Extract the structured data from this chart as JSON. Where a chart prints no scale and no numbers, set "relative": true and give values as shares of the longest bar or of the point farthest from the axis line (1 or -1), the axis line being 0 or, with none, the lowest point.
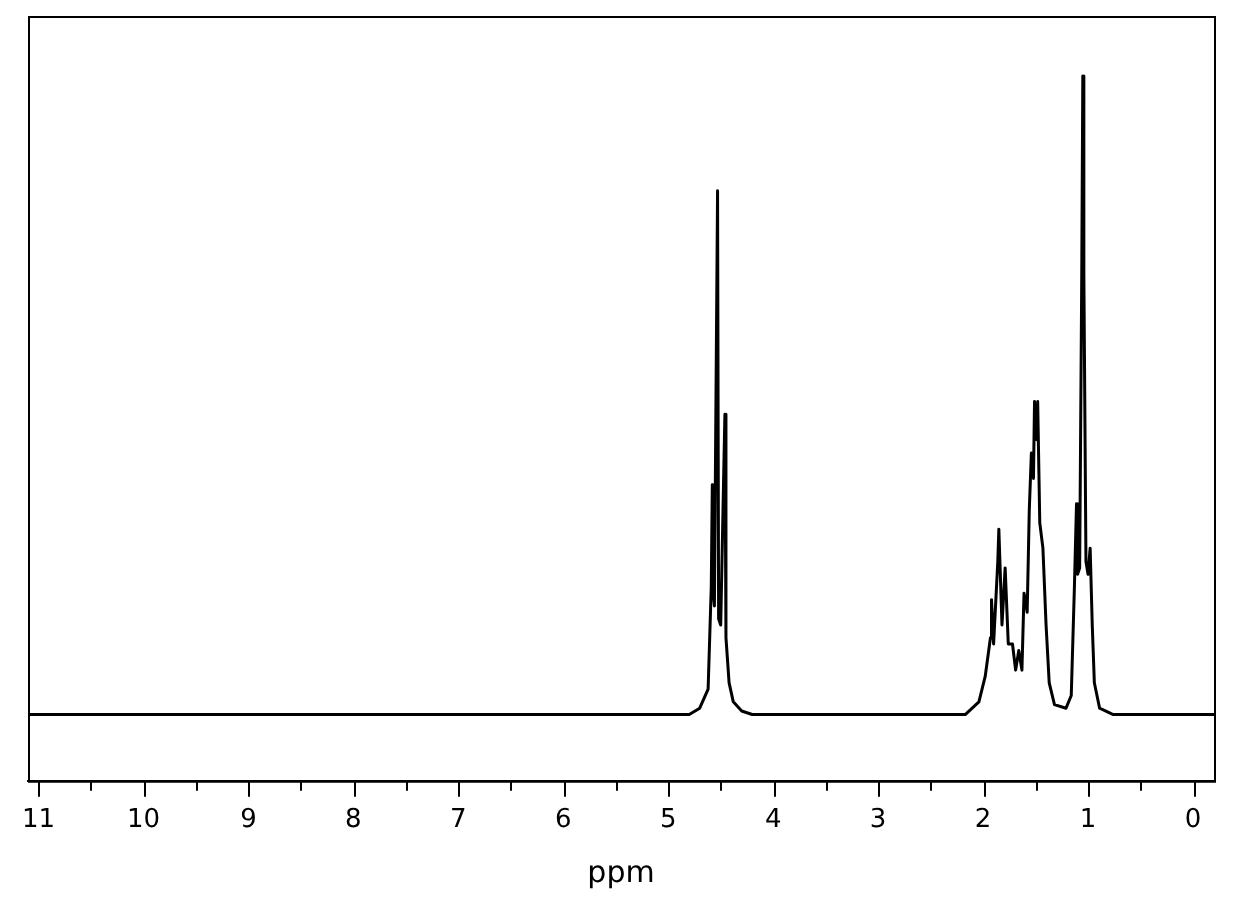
{
  "chart_data": {
    "type": "line",
    "xlabel": "ppm",
    "relative": true,
    "xlim": [
      11.1,
      -0.2
    ],
    "xticks": [
      11,
      {
        "value": 10.5,
        "label": null
      },
      10,
      {
        "value": 9.5,
        "label": null
      },
      9,
      {
        "value": 8.5,
        "label": null
      },
      8,
      {
        "value": 7.5,
        "label": null
      },
      7,
      {
        "value": 6.5,
        "label": null
      },
      6,
      {
        "value": 5.5,
        "label": null
      },
      5,
      {
        "value": 4.5,
        "label": null
      },
      4,
      {
        "value": 3.5,
        "label": null
      },
      3,
      {
        "value": 2.5,
        "label": null
      },
      2,
      {
        "value": 1.5,
        "label": null
      },
      1,
      {
        "value": 0.5,
        "label": null
      },
      0
    ],
    "tick_labels": "x",
    "grid": false,
    "legend": false,
    "marker": "none",
    "series": [
      {
        "color": "#000000",
        "x": [
          11.1,
          4.8,
          4.7,
          4.62,
          4.59,
          4.58,
          4.575,
          4.56,
          4.53,
          4.52,
          4.5,
          4.46,
          4.45,
          4.42,
          4.38,
          4.3,
          4.2,
          2.43,
          2.17,
          2.04,
          1.98,
          1.93,
          1.92,
          1.9,
          1.86,
          1.85,
          1.82,
          1.79,
          1.76,
          1.72,
          1.69,
          1.66,
          1.63,
          1.61,
          1.58,
          1.56,
          1.54,
          1.52,
          1.51,
          1.49,
          1.48,
          1.46,
          1.43,
          1.4,
          1.37,
          1.32,
          1.21,
          1.16,
          1.13,
          1.11,
          1.1,
          1.08,
          1.06,
          1.05,
          1.04,
          1.02,
          1.0,
          0.98,
          0.96,
          0.94,
          0.89,
          0.76,
          -0.2
        ],
        "values": [
          0.094,
          0.094,
          0.103,
          0.13,
          0.275,
          0.42,
          0.275,
          0.248,
          0.837,
          0.23,
          0.221,
          0.52,
          0.203,
          0.139,
          0.112,
          0.099,
          0.094,
          0.094,
          0.094,
          0.112,
          0.148,
          0.203,
          0.257,
          0.194,
          0.311,
          0.357,
          0.221,
          0.302,
          0.194,
          0.194,
          0.157,
          0.185,
          0.157,
          0.266,
          0.239,
          0.384,
          0.465,
          0.429,
          0.538,
          0.484,
          0.538,
          0.366,
          0.33,
          0.221,
          0.139,
          0.108,
          0.103,
          0.121,
          0.275,
          0.393,
          0.293,
          0.302,
          0.719,
          1,
          0.719,
          0.311,
          0.293,
          0.33,
          0.221,
          0.139,
          0.103,
          0.094,
          0.094
        ]
      }
    ]
  }
}
